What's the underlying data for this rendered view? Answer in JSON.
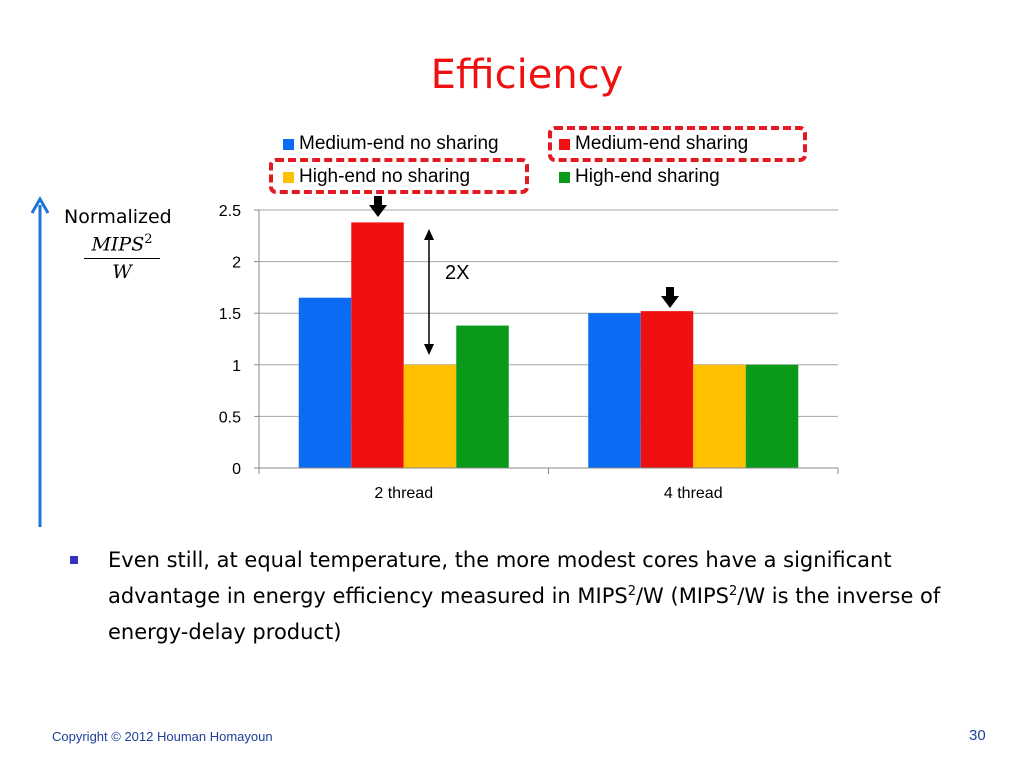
{
  "slide": {
    "title": "Efficiency",
    "ylabel_word": "Normalized",
    "ylabel_numerator": "MIPS",
    "ylabel_numerator_sup": "2",
    "ylabel_denominator": "W",
    "annotation": "2X",
    "bullet_parts": [
      "Even still, at equal temperature, the more modest cores have a significant advantage in energy efficiency measured in MIPS",
      "2",
      "/W (MIPS",
      "2",
      "/W is the inverse of energy-delay product)"
    ],
    "copyright": "Copyright © 2012 Houman Homayoun",
    "page_number": "30"
  },
  "colors": {
    "title": "#ee1111",
    "highlight_box": "#e21b23",
    "axis_arrow": "#1f74d8"
  },
  "chart_data": {
    "type": "bar",
    "categories": [
      "2 thread",
      "4 thread"
    ],
    "series": [
      {
        "name": "Medium-end no sharing",
        "color": "#0a6cf5",
        "values": [
          1.65,
          1.5
        ]
      },
      {
        "name": "Medium-end sharing",
        "color": "#f01010",
        "values": [
          2.38,
          1.52
        ]
      },
      {
        "name": "High-end no sharing",
        "color": "#ffc000",
        "values": [
          1.0,
          1.0
        ]
      },
      {
        "name": "High-end sharing",
        "color": "#0a9a1a",
        "values": [
          1.38,
          1.0
        ]
      }
    ],
    "yticks": [
      "0",
      "0.5",
      "1",
      "1.5",
      "2",
      "2.5"
    ],
    "ylim": [
      0,
      2.5
    ],
    "grid": true,
    "legend_position": "top",
    "highlighted_series": [
      "Medium-end sharing",
      "High-end no sharing"
    ]
  }
}
